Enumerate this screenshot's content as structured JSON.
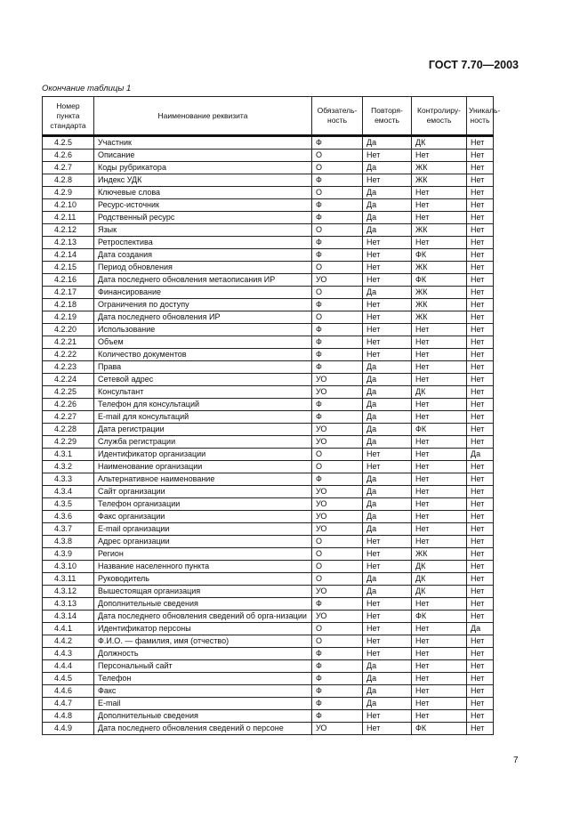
{
  "header": {
    "doc_id": "ГОСТ 7.70—2003"
  },
  "caption": "Окончание таблицы 1",
  "table": {
    "columns": [
      "Номер пункта стандарта",
      "Наименование реквизита",
      "Обязатель-ность",
      "Повторя-емость",
      "Контролиру-емость",
      "Уникаль-ность"
    ],
    "rows": [
      [
        "4.2.5",
        "Участник",
        "Ф",
        "Да",
        "ДК",
        "Нет"
      ],
      [
        "4.2.6",
        "Описание",
        "О",
        "Нет",
        "Нет",
        "Нет"
      ],
      [
        "4.2.7",
        "Коды рубрикатора",
        "О",
        "Да",
        "ЖК",
        "Нет"
      ],
      [
        "4.2.8",
        "Индекс УДК",
        "Ф",
        "Нет",
        "ЖК",
        "Нет"
      ],
      [
        "4.2.9",
        "Ключевые слова",
        "О",
        "Да",
        "Нет",
        "Нет"
      ],
      [
        "4.2.10",
        "Ресурс-источник",
        "Ф",
        "Да",
        "Нет",
        "Нет"
      ],
      [
        "4.2.11",
        "Родственный ресурс",
        "Ф",
        "Да",
        "Нет",
        "Нет"
      ],
      [
        "4.2.12",
        "Язык",
        "О",
        "Да",
        "ЖК",
        "Нет"
      ],
      [
        "4.2.13",
        "Ретроспектива",
        "Ф",
        "Нет",
        "Нет",
        "Нет"
      ],
      [
        "4.2.14",
        "Дата создания",
        "Ф",
        "Нет",
        "ФК",
        "Нет"
      ],
      [
        "4.2.15",
        "Период обновления",
        "О",
        "Нет",
        "ЖК",
        "Нет"
      ],
      [
        "4.2.16",
        "Дата последнего обновления метаописания ИР",
        "УО",
        "Нет",
        "ФК",
        "Нет"
      ],
      [
        "4.2.17",
        "Финансирование",
        "О",
        "Да",
        "ЖК",
        "Нет"
      ],
      [
        "4.2.18",
        "Ограничения по доступу",
        "Ф",
        "Нет",
        "ЖК",
        "Нет"
      ],
      [
        "4.2.19",
        "Дата последнего обновления ИР",
        "О",
        "Нет",
        "ЖК",
        "Нет"
      ],
      [
        "4.2.20",
        "Использование",
        "Ф",
        "Нет",
        "Нет",
        "Нет"
      ],
      [
        "4.2.21",
        "Объем",
        "Ф",
        "Нет",
        "Нет",
        "Нет"
      ],
      [
        "4.2.22",
        "Количество документов",
        "Ф",
        "Нет",
        "Нет",
        "Нет"
      ],
      [
        "4.2.23",
        "Права",
        "Ф",
        "Да",
        "Нет",
        "Нет"
      ],
      [
        "4.2.24",
        "Сетевой адрес",
        "УО",
        "Да",
        "Нет",
        "Нет"
      ],
      [
        "4.2.25",
        "Консультант",
        "УО",
        "Да",
        "ДК",
        "Нет"
      ],
      [
        "4.2.26",
        "Телефон для консультаций",
        "Ф",
        "Да",
        "Нет",
        "Нет"
      ],
      [
        "4.2.27",
        "E-mail для консультаций",
        "Ф",
        "Да",
        "Нет",
        "Нет"
      ],
      [
        "4.2.28",
        "Дата регистрации",
        "УО",
        "Да",
        "ФК",
        "Нет"
      ],
      [
        "4.2.29",
        "Служба регистрации",
        "УО",
        "Да",
        "Нет",
        "Нет"
      ],
      [
        "4.3.1",
        "Идентификатор организации",
        "О",
        "Нет",
        "Нет",
        "Да"
      ],
      [
        "4.3.2",
        "Наименование организации",
        "О",
        "Нет",
        "Нет",
        "Нет"
      ],
      [
        "4.3.3",
        "Альтернативное наименование",
        "Ф",
        "Да",
        "Нет",
        "Нет"
      ],
      [
        "4.3.4",
        "Сайт организации",
        "УО",
        "Да",
        "Нет",
        "Нет"
      ],
      [
        "4.3.5",
        "Телефон организации",
        "УО",
        "Да",
        "Нет",
        "Нет"
      ],
      [
        "4.3.6",
        "Факс организации",
        "УО",
        "Да",
        "Нет",
        "Нет"
      ],
      [
        "4.3.7",
        "E-mail организации",
        "УО",
        "Да",
        "Нет",
        "Нет"
      ],
      [
        "4.3.8",
        "Адрес организации",
        "О",
        "Нет",
        "Нет",
        "Нет"
      ],
      [
        "4.3.9",
        "Регион",
        "О",
        "Нет",
        "ЖК",
        "Нет"
      ],
      [
        "4.3.10",
        "Название населенного пункта",
        "О",
        "Нет",
        "ДК",
        "Нет"
      ],
      [
        "4.3.11",
        "Руководитель",
        "О",
        "Да",
        "ДК",
        "Нет"
      ],
      [
        "4.3.12",
        "Вышестоящая организация",
        "УО",
        "Да",
        "ДК",
        "Нет"
      ],
      [
        "4.3.13",
        "Дополнительные сведения",
        "Ф",
        "Нет",
        "Нет",
        "Нет"
      ],
      [
        "4.3.14",
        "Дата последнего обновления сведений об орга-низации",
        "УО",
        "Нет",
        "ФК",
        "Нет"
      ],
      [
        "4.4.1",
        "Идентификатор персоны",
        "О",
        "Нет",
        "Нет",
        "Да"
      ],
      [
        "4.4.2",
        "Ф.И.О. — фамилия, имя (отчество)",
        "О",
        "Нет",
        "Нет",
        "Нет"
      ],
      [
        "4.4.3",
        "Должность",
        "Ф",
        "Нет",
        "Нет",
        "Нет"
      ],
      [
        "4.4.4",
        "Персональный сайт",
        "Ф",
        "Да",
        "Нет",
        "Нет"
      ],
      [
        "4.4.5",
        "Телефон",
        "Ф",
        "Да",
        "Нет",
        "Нет"
      ],
      [
        "4.4.6",
        "Факс",
        "Ф",
        "Да",
        "Нет",
        "Нет"
      ],
      [
        "4.4.7",
        "E-mail",
        "Ф",
        "Да",
        "Нет",
        "Нет"
      ],
      [
        "4.4.8",
        "Дополнительные сведения",
        "Ф",
        "Нет",
        "Нет",
        "Нет"
      ],
      [
        "4.4.9",
        "Дата последнего обновления сведений о персоне",
        "УО",
        "Нет",
        "ФК",
        "Нет"
      ]
    ]
  },
  "page_number": "7"
}
